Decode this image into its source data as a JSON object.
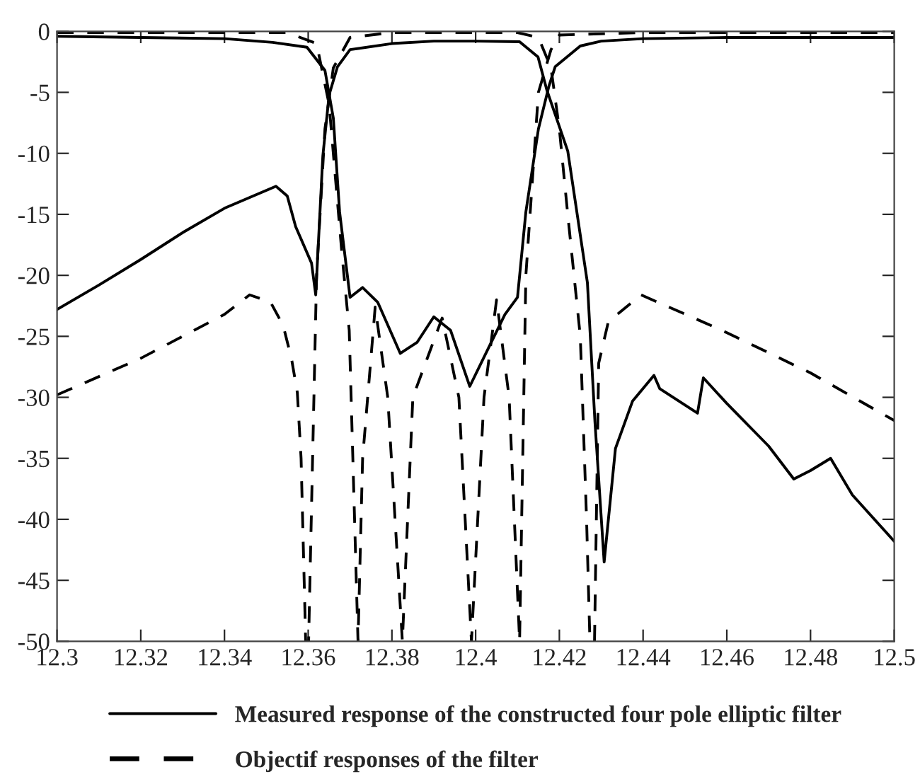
{
  "chart_data": {
    "type": "line",
    "xlim": [
      12.3,
      12.5
    ],
    "xticks": [
      12.3,
      12.32,
      12.34,
      12.36,
      12.38,
      12.4,
      12.42,
      12.44,
      12.46,
      12.48,
      12.5
    ],
    "ylim": [
      -50,
      0
    ],
    "yticks": [
      0,
      -5,
      -10,
      -15,
      -20,
      -25,
      -30,
      -35,
      -40,
      -45,
      -50
    ],
    "grid": false,
    "legend": "bottom",
    "marker": "none",
    "series": [
      {
        "name": "Measured response of the constructed four pole elliptic filter",
        "color": "#000000",
        "line_style": "solid",
        "x": [
          12.3,
          12.31,
          12.32,
          12.33,
          12.34,
          12.3523,
          12.355,
          12.357,
          12.3608,
          12.3618,
          12.3635,
          12.365,
          12.367,
          12.37,
          12.38,
          12.39,
          12.4,
          12.4105,
          12.4149,
          12.417,
          12.422,
          12.4267,
          12.4285,
          12.4307,
          12.4334,
          12.4375,
          12.4426,
          12.444,
          12.453,
          12.4544,
          12.46,
          12.47,
          12.476,
          12.48,
          12.4848,
          12.49,
          12.5
        ],
        "values": [
          -22.8,
          -20.8,
          -18.7,
          -16.5,
          -14.5,
          -12.7,
          -13.5,
          -16,
          -19,
          -21.6,
          -10.2,
          -5.2,
          -2.9,
          -1.5,
          -1.0,
          -0.8,
          -0.8,
          -0.85,
          -2.1,
          -4.8,
          -9.8,
          -20.6,
          -32,
          -43.5,
          -34.2,
          -30.3,
          -28.2,
          -29.3,
          -31.3,
          -28.4,
          -30.5,
          -34,
          -36.7,
          -36,
          -35,
          -38,
          -41.8
        ]
      },
      {
        "color": "#000000",
        "line_style": "solid",
        "x": [
          12.3,
          12.32,
          12.34,
          12.3515,
          12.3597,
          12.364,
          12.366,
          12.3675,
          12.37,
          12.373,
          12.3766,
          12.382,
          12.386,
          12.39,
          12.394,
          12.3986,
          12.403,
          12.407,
          12.41,
          12.412,
          12.415,
          12.4175,
          12.419,
          12.425,
          12.43,
          12.44,
          12.46,
          12.5
        ],
        "values": [
          -0.4,
          -0.5,
          -0.6,
          -0.9,
          -1.3,
          -3.2,
          -7.1,
          -14.8,
          -21.8,
          -21,
          -22.2,
          -26.4,
          -25.5,
          -23.4,
          -24.5,
          -29.1,
          -26,
          -23.2,
          -21.8,
          -14.8,
          -8,
          -4.5,
          -2.9,
          -1.2,
          -0.8,
          -0.6,
          -0.5,
          -0.5
        ]
      },
      {
        "name": "Objectif responses of the filter",
        "color": "#000000",
        "line_style": "dashed",
        "x": [
          12.3,
          12.32,
          12.34,
          12.346,
          12.351,
          12.354,
          12.356,
          12.3574,
          12.3583,
          12.3594,
          12.3601,
          12.362,
          12.364,
          12.366,
          12.37,
          12.38,
          12.4,
          12.41,
          12.415,
          12.418,
          12.42,
          12.422,
          12.425,
          12.4265,
          12.4273,
          12.4284,
          12.4294,
          12.4317,
          12.4395,
          12.4588,
          12.48,
          12.5
        ],
        "values": [
          -29.8,
          -26.8,
          -23.2,
          -21.6,
          -22.2,
          -24.1,
          -26.8,
          -29.6,
          -35,
          -50,
          -50,
          -20,
          -8,
          -3,
          -0.5,
          -0.1,
          -0.1,
          -0.1,
          -0.5,
          -3,
          -8,
          -15,
          -25,
          -40,
          -50,
          -50,
          -27.2,
          -23.8,
          -21.6,
          -24.5,
          -28,
          -31.9
        ]
      },
      {
        "color": "#000000",
        "line_style": "dashed",
        "x": [
          12.3,
          12.355,
          12.362,
          12.365,
          12.368,
          12.3698,
          12.3719,
          12.373,
          12.376,
          12.379,
          12.3825,
          12.385,
          12.392,
          12.396,
          12.399,
          12.402,
          12.405,
          12.408,
          12.4105,
          12.412,
          12.415,
          12.418,
          12.42,
          12.44,
          12.5
        ],
        "values": [
          -0.1,
          -0.1,
          -1,
          -6,
          -18,
          -24.5,
          -50,
          -35,
          -22.6,
          -30,
          -50,
          -30,
          -23.5,
          -30,
          -50,
          -30,
          -22,
          -30,
          -50,
          -20,
          -5,
          -1.5,
          -0.3,
          -0.1,
          -0.1
        ]
      }
    ]
  }
}
